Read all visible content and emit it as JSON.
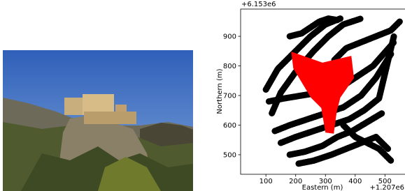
{
  "chart_data": {
    "type": "line",
    "xlabel": "Eastern (m)",
    "ylabel": "Northern (m)",
    "x_offset_label": "+1.207e6",
    "y_offset_label": "+6.153e6",
    "xlim": [
      15,
      565
    ],
    "ylim": [
      434,
      992
    ],
    "xticks": [
      100,
      200,
      300,
      400,
      500
    ],
    "yticks": [
      500,
      600,
      700,
      800,
      900
    ],
    "grid": false,
    "series": [
      {
        "color": "#000000",
        "x": [
          120,
          150,
          200,
          260,
          310,
          360,
          420
        ],
        "values": [
          640,
          710,
          780,
          850,
          900,
          940,
          960
        ]
      },
      {
        "color": "#000000",
        "x": [
          100,
          140,
          190,
          250,
          300,
          350
        ],
        "values": [
          720,
          790,
          840,
          900,
          940,
          960
        ]
      },
      {
        "color": "#000000",
        "x": [
          130,
          180,
          240,
          300,
          360,
          420,
          470,
          520
        ],
        "values": [
          580,
          600,
          620,
          640,
          660,
          700,
          760,
          840
        ]
      },
      {
        "color": "#000000",
        "x": [
          150,
          200,
          260,
          320,
          380,
          430,
          480,
          530
        ],
        "values": [
          540,
          560,
          580,
          600,
          620,
          650,
          690,
          900
        ]
      },
      {
        "color": "#000000",
        "x": [
          180,
          230,
          290,
          340,
          390,
          440,
          490
        ],
        "values": [
          500,
          510,
          530,
          560,
          580,
          610,
          640
        ]
      },
      {
        "color": "#000000",
        "x": [
          210,
          260,
          320,
          370,
          420,
          470,
          510
        ],
        "values": [
          470,
          480,
          500,
          520,
          540,
          560,
          520
        ]
      },
      {
        "color": "#000000",
        "x": [
          110,
          160,
          220,
          280,
          340,
          400,
          460,
          530
        ],
        "values": [
          680,
          690,
          700,
          710,
          720,
          760,
          800,
          880
        ]
      },
      {
        "color": "#000000",
        "x": [
          330,
          370,
          420,
          470,
          520,
          550
        ],
        "values": [
          820,
          860,
          880,
          900,
          920,
          950
        ]
      },
      {
        "color": "#000000",
        "x": [
          360,
          400,
          440,
          480,
          520
        ],
        "values": [
          600,
          560,
          540,
          520,
          480
        ]
      },
      {
        "color": "#000000",
        "x": [
          180,
          220,
          250,
          280,
          310,
          340
        ],
        "values": [
          900,
          910,
          930,
          950,
          960,
          955
        ]
      }
    ],
    "region": {
      "color": "#ff0000",
      "x": [
        185,
        290,
        387,
        396,
        350,
        338,
        328,
        300,
        286,
        251,
        192
      ],
      "values": [
        848,
        811,
        834,
        759,
        693,
        646,
        571,
        575,
        658,
        693,
        792
      ]
    }
  }
}
